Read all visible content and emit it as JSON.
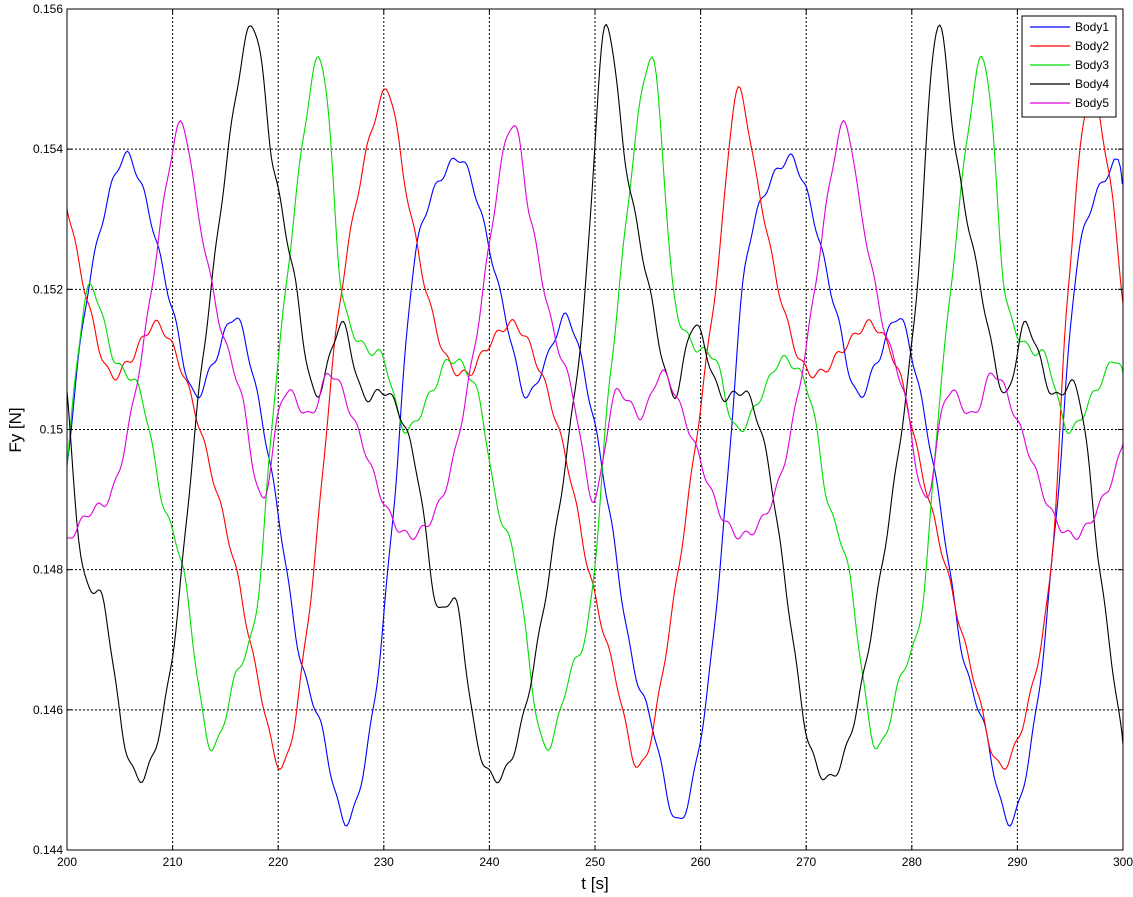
{
  "chart_data": {
    "type": "line",
    "title": "",
    "xlabel": "t [s]",
    "ylabel": "Fy [N]",
    "xlim": [
      200,
      300
    ],
    "ylim": [
      0.144,
      0.156
    ],
    "x_ticks": [
      "200",
      "210",
      "220",
      "230",
      "240",
      "250",
      "260",
      "270",
      "280",
      "290",
      "300"
    ],
    "y_ticks": [
      "0.144",
      "0.146",
      "0.148",
      "0.15",
      "0.152",
      "0.154",
      "0.156"
    ],
    "grid": true,
    "legend_position": "top-right",
    "period_s": 31.4,
    "series": [
      {
        "name": "Body1",
        "color": "#0000ff",
        "x": [
          200,
          202,
          205,
          207,
          210,
          212,
          214,
          216,
          218,
          220,
          222,
          224,
          226.5,
          229,
          231,
          233,
          236.4,
          238.4,
          241.4,
          243.4,
          245.4,
          247.4,
          249.4,
          251.4,
          253.4,
          255.4,
          257.9,
          260.4,
          262.4,
          264.4,
          267.8,
          269.8,
          272.8,
          274.8,
          276.8,
          278.8,
          280.8,
          282.8,
          284.8,
          286.8,
          289.3,
          291.8,
          293.8,
          295.8,
          299.2,
          300
        ],
        "y": [
          0.1495,
          0.152,
          0.1538,
          0.1535,
          0.1517,
          0.1505,
          0.151,
          0.1516,
          0.1505,
          0.1488,
          0.1468,
          0.1458,
          0.1444,
          0.146,
          0.149,
          0.1525,
          0.1538,
          0.1535,
          0.1517,
          0.1505,
          0.151,
          0.1516,
          0.1505,
          0.1488,
          0.1468,
          0.1458,
          0.1444,
          0.146,
          0.149,
          0.1525,
          0.1538,
          0.1535,
          0.1517,
          0.1505,
          0.151,
          0.1516,
          0.1505,
          0.1488,
          0.1468,
          0.1458,
          0.1444,
          0.146,
          0.149,
          0.1525,
          0.1538,
          0.1535
        ]
      },
      {
        "name": "Body2",
        "color": "#ff0000",
        "x": [
          200,
          202,
          204,
          206,
          208.5,
          211,
          213.5,
          216,
          218,
          220.5,
          223,
          226,
          230,
          232,
          234,
          236,
          238,
          239.9,
          242.4,
          244.9,
          247.4,
          249.4,
          251.9,
          254.4,
          257.4,
          261.4,
          263.4,
          265.4,
          267.4,
          269.4,
          271.3,
          273.8,
          276.3,
          278.8,
          280.8,
          283.3,
          285.8,
          288.8,
          292.8,
          294.8,
          296.8,
          298.8,
          300
        ],
        "y": [
          0.1532,
          0.1518,
          0.1508,
          0.151,
          0.1515,
          0.1508,
          0.1495,
          0.148,
          0.1465,
          0.1452,
          0.1475,
          0.152,
          0.1548,
          0.1535,
          0.152,
          0.151,
          0.1508,
          0.1512,
          0.1515,
          0.1508,
          0.1495,
          0.148,
          0.1465,
          0.1452,
          0.1475,
          0.152,
          0.1548,
          0.1535,
          0.152,
          0.151,
          0.1508,
          0.1512,
          0.1515,
          0.1508,
          0.1495,
          0.148,
          0.1465,
          0.1452,
          0.1475,
          0.152,
          0.1548,
          0.1535,
          0.1518
        ]
      },
      {
        "name": "Body3",
        "color": "#00dd00",
        "x": [
          200,
          202,
          204.5,
          207,
          209,
          211,
          213.5,
          216,
          218,
          220,
          223.8,
          226,
          228,
          230,
          232,
          234.4,
          236.4,
          238.9,
          240.6,
          242.6,
          245.1,
          247.6,
          249.6,
          251.6,
          255.2,
          257.4,
          259.4,
          261.4,
          263.4,
          265.8,
          267.8,
          270.3,
          272,
          274,
          276.5,
          279,
          281,
          283,
          286.6,
          288.8,
          290.8,
          292.8,
          294.8,
          297.2,
          299.2,
          300
        ],
        "y": [
          0.1495,
          0.152,
          0.151,
          0.1505,
          0.149,
          0.148,
          0.1455,
          0.1465,
          0.1475,
          0.151,
          0.1553,
          0.152,
          0.1512,
          0.151,
          0.15,
          0.1505,
          0.151,
          0.1505,
          0.149,
          0.148,
          0.1455,
          0.1465,
          0.1475,
          0.151,
          0.1553,
          0.152,
          0.1512,
          0.151,
          0.15,
          0.1505,
          0.151,
          0.1505,
          0.149,
          0.148,
          0.1455,
          0.1465,
          0.1475,
          0.151,
          0.1553,
          0.152,
          0.1512,
          0.151,
          0.15,
          0.1505,
          0.151,
          0.1508
        ]
      },
      {
        "name": "Body4",
        "color": "#000000",
        "x": [
          200,
          201.5,
          203.5,
          205.5,
          207.5,
          210,
          213,
          217.2,
          219.5,
          221.5,
          223.5,
          226,
          228,
          230.5,
          233,
          235,
          236.9,
          238.9,
          241.4,
          244.4,
          248.6,
          250.9,
          252.9,
          254.9,
          257.4,
          259.4,
          261.9,
          264.4,
          266.4,
          268.3,
          270.3,
          272.8,
          275.8,
          280,
          282.3,
          284.3,
          286.3,
          288.8,
          290.8,
          293.3,
          295.8,
          297.8,
          300
        ],
        "y": [
          0.1505,
          0.148,
          0.1475,
          0.1455,
          0.1451,
          0.1468,
          0.1512,
          0.1557,
          0.1538,
          0.1522,
          0.1505,
          0.1515,
          0.1505,
          0.1505,
          0.1495,
          0.1475,
          0.1475,
          0.1455,
          0.1451,
          0.1468,
          0.1512,
          0.1557,
          0.1538,
          0.1522,
          0.1505,
          0.1515,
          0.1505,
          0.1505,
          0.1495,
          0.1475,
          0.1455,
          0.1451,
          0.1468,
          0.1512,
          0.1557,
          0.1538,
          0.1522,
          0.1505,
          0.1515,
          0.1505,
          0.1505,
          0.148,
          0.1455
        ]
      },
      {
        "name": "Body5",
        "color": "#dd00dd",
        "x": [
          200,
          202,
          204.5,
          207,
          210.5,
          212.5,
          214.5,
          216.5,
          218.5,
          220.5,
          223,
          225,
          227.5,
          230.5,
          233,
          235.9,
          238.4,
          241.9,
          243.9,
          245.9,
          247.9,
          249.9,
          251.9,
          254.4,
          256.4,
          258.9,
          261.9,
          264.4,
          267.3,
          269.8,
          273.3,
          275.3,
          277.3,
          279.3,
          281.3,
          283.3,
          285.8,
          287.8,
          290.3,
          293.3,
          295.8,
          298.7,
          300
        ],
        "y": [
          0.1484,
          0.1488,
          0.1492,
          0.151,
          0.1543,
          0.153,
          0.1515,
          0.1505,
          0.149,
          0.1505,
          0.1502,
          0.1508,
          0.15,
          0.1488,
          0.1485,
          0.1492,
          0.151,
          0.1543,
          0.153,
          0.1515,
          0.1505,
          0.149,
          0.1505,
          0.1502,
          0.1508,
          0.15,
          0.1488,
          0.1485,
          0.1492,
          0.151,
          0.1543,
          0.153,
          0.1515,
          0.1505,
          0.149,
          0.1505,
          0.1502,
          0.1508,
          0.15,
          0.1488,
          0.1485,
          0.1492,
          0.1498
        ]
      }
    ]
  }
}
